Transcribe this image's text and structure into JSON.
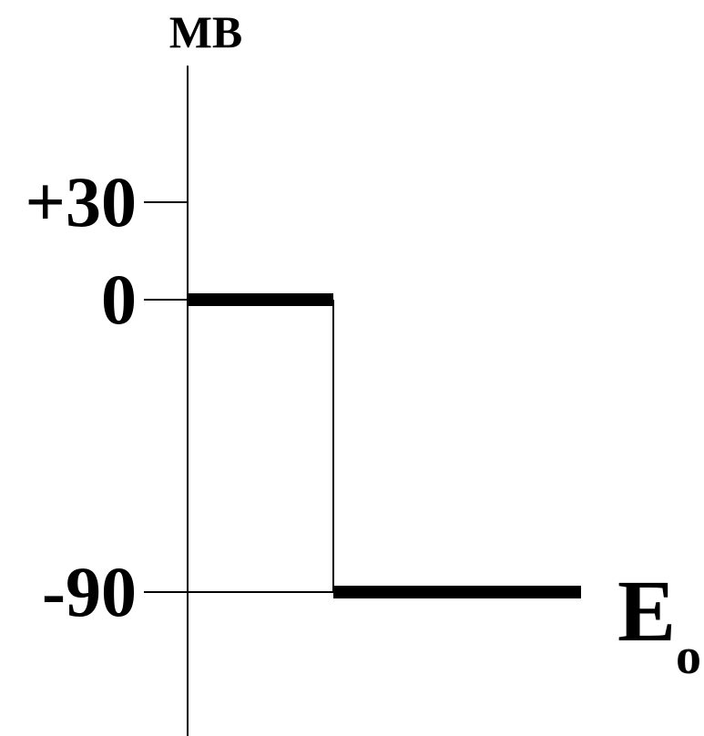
{
  "chart_data": {
    "type": "line",
    "title": "",
    "ylabel": "MB",
    "xlabel": "",
    "x_axis_label_main": "E",
    "x_axis_label_sub": "o",
    "yticks": [
      {
        "value": 30,
        "label": "+30"
      },
      {
        "value": 0,
        "label": "0"
      },
      {
        "value": -90,
        "label": "-90"
      }
    ],
    "ylim": [
      -90,
      30
    ],
    "series": [
      {
        "segments": [
          {
            "x0": 0,
            "x1": 1,
            "y": 0
          },
          {
            "x0": 1,
            "x1": 2.7,
            "y": -90
          }
        ]
      }
    ],
    "grid": false
  }
}
